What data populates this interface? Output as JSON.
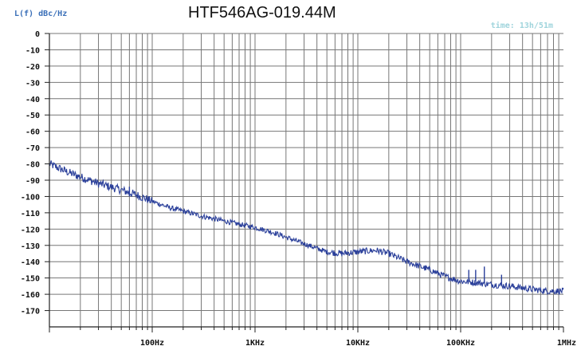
{
  "chart_data": {
    "type": "line",
    "title": "HTF546AG-019.44M",
    "ylabel": "L(f) dBc/Hz",
    "time_label": "time: 13h/51m",
    "x_scale": "log",
    "xlim": [
      10,
      1000000
    ],
    "ylim": [
      -180,
      0
    ],
    "yticks": [
      0,
      -10,
      -20,
      -30,
      -40,
      -50,
      -60,
      -70,
      -80,
      -90,
      -100,
      -110,
      -120,
      -130,
      -140,
      -150,
      -160,
      -170
    ],
    "ytick_labels": [
      "0",
      "-10",
      "-20",
      "-30",
      "-40",
      "-50",
      "-60",
      "-70",
      "-80",
      "-90",
      "-100",
      "-110",
      "-120",
      "-130",
      "-140",
      "-150",
      "-160",
      "-170"
    ],
    "xticks": [
      100,
      1000,
      10000,
      100000,
      1000000
    ],
    "xtick_labels": [
      "100Hz",
      "1KHz",
      "10KHz",
      "100KHz",
      "1MHz"
    ],
    "grid": true,
    "line_color": "#2a3f9a",
    "series": [
      {
        "x": [
          10,
          15,
          20,
          30,
          50,
          70,
          100,
          150,
          200,
          300,
          500,
          700,
          1000,
          1500,
          2000,
          3000,
          5000,
          7000,
          10000,
          15000,
          20000,
          30000,
          50000,
          70000,
          100000,
          150000,
          200000,
          300000,
          500000,
          700000,
          1000000
        ],
        "values": [
          -80,
          -85,
          -88,
          -92,
          -96,
          -99,
          -103,
          -107,
          -109,
          -112,
          -115,
          -117,
          -119,
          -122,
          -125,
          -129,
          -134,
          -135,
          -134,
          -133,
          -135,
          -140,
          -145,
          -149,
          -152,
          -153,
          -154,
          -155,
          -157,
          -158,
          -158
        ]
      }
    ],
    "spurs": [
      {
        "x": 60,
        "values": [
          -100,
          -94
        ]
      },
      {
        "x": 120000,
        "values": [
          -152,
          -145
        ]
      },
      {
        "x": 140000,
        "values": [
          -152,
          -145
        ]
      },
      {
        "x": 170000,
        "values": [
          -153,
          -143
        ]
      },
      {
        "x": 250000,
        "values": [
          -154,
          -148
        ]
      }
    ]
  }
}
